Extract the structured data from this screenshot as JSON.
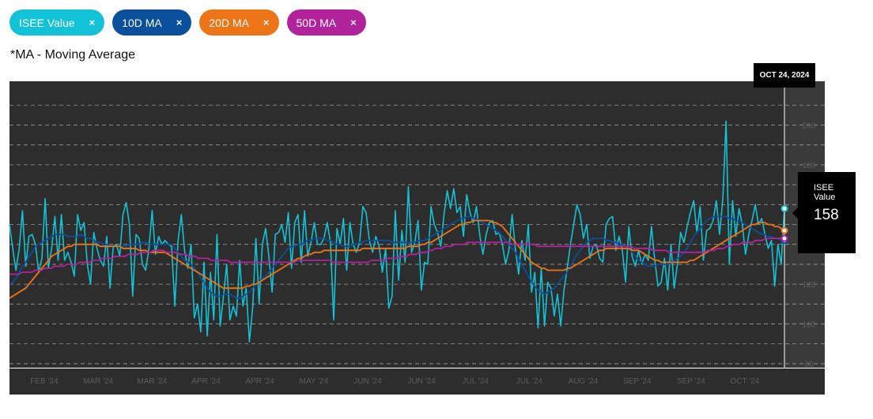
{
  "legend_chips": [
    {
      "label": "ISEE Value",
      "color": "#12c2d6",
      "remove": "×"
    },
    {
      "label": "10D MA",
      "color": "#0a4f9c",
      "remove": "×"
    },
    {
      "label": "20D MA",
      "color": "#ee7418",
      "remove": "×"
    },
    {
      "label": "50D MA",
      "color": "#b2239b",
      "remove": "×"
    }
  ],
  "note": "*MA - Moving Average",
  "tooltip": {
    "date": "OCT 24, 2024",
    "series": "ISEE Value",
    "value": "158"
  },
  "chart_data": {
    "type": "line",
    "x_labels": [
      "FEB '24",
      "MAR '24",
      "MAR '24",
      "APR '24",
      "APR '24",
      "MAY '24",
      "JUN '24",
      "JUN '24",
      "JUL '24",
      "JUL '24",
      "AUG '24",
      "SEP '24",
      "SEP '24",
      "OCT '24"
    ],
    "y_ticks": [
      80,
      100,
      120,
      140,
      160,
      180,
      200
    ],
    "ylim": [
      78,
      222
    ],
    "grid": true,
    "series": [
      {
        "name": "ISEE Value",
        "color": "#12c2d6",
        "values": [
          150,
          138,
          127,
          138,
          157,
          129,
          144,
          145,
          140,
          126,
          133,
          163,
          128,
          138,
          154,
          132,
          155,
          132,
          136,
          131,
          124,
          155,
          147,
          151,
          130,
          120,
          146,
          138,
          132,
          129,
          144,
          118,
          139,
          140,
          134,
          155,
          161,
          150,
          114,
          145,
          143,
          130,
          127,
          138,
          157,
          135,
          144,
          140,
          142,
          140,
          139,
          109,
          142,
          155,
          137,
          128,
          140,
          103,
          110,
          96,
          131,
          94,
          126,
          102,
          145,
          99,
          114,
          130,
          102,
          109,
          104,
          132,
          109,
          118,
          91,
          108,
          143,
          110,
          140,
          148,
          134,
          116,
          145,
          146,
          150,
          141,
          156,
          128,
          151,
          155,
          131,
          157,
          134,
          141,
          151,
          140,
          140,
          143,
          151,
          141,
          102,
          148,
          140,
          153,
          127,
          151,
          140,
          136,
          141,
          159,
          156,
          142,
          136,
          144,
          139,
          126,
          138,
          108,
          114,
          157,
          122,
          147,
          131,
          169,
          136,
          141,
          152,
          117,
          131,
          130,
          159,
          150,
          146,
          139,
          155,
          167,
          158,
          168,
          156,
          159,
          144,
          165,
          156,
          151,
          159,
          145,
          135,
          145,
          151,
          152,
          145,
          146,
          140,
          130,
          137,
          155,
          138,
          125,
          142,
          132,
          150,
          116,
          126,
          98,
          128,
          99,
          121,
          118,
          104,
          115,
          99,
          117,
          128,
          140,
          150,
          160,
          155,
          143,
          150,
          133,
          139,
          140,
          133,
          131,
          150,
          153,
          154,
          137,
          144,
          137,
          121,
          149,
          134,
          129,
          137,
          130,
          135,
          132,
          149,
          132,
          119,
          121,
          133,
          117,
          140,
          118,
          130,
          146,
          141,
          149,
          156,
          162,
          146,
          159,
          132,
          147,
          148,
          152,
          162,
          145,
          163,
          202,
          130,
          162,
          144,
          158,
          150,
          135,
          145,
          152,
          160,
          150,
          153,
          145,
          138,
          142,
          119,
          140,
          130,
          158
        ]
      },
      {
        "name": "10D MA",
        "color": "#0a4f9c",
        "values": [
          120,
          121,
          123,
          126,
          129,
          131,
          134,
          136,
          139,
          140,
          141,
          142,
          143,
          144,
          145,
          145,
          145,
          145,
          144,
          144,
          144,
          144,
          145,
          144,
          143,
          143,
          142,
          141,
          141,
          140,
          140,
          139,
          139,
          139,
          139,
          139,
          139,
          140,
          140,
          140,
          140,
          141,
          141,
          140,
          140,
          140,
          140,
          140,
          140,
          140,
          140,
          138,
          136,
          134,
          132,
          131,
          130,
          128,
          126,
          123,
          121,
          118,
          116,
          115,
          114,
          114,
          115,
          115,
          115,
          114,
          113,
          113,
          114,
          115,
          116,
          118,
          120,
          121,
          123,
          124,
          126,
          128,
          130,
          132,
          134,
          136,
          138,
          139,
          139,
          140,
          140,
          141,
          142,
          142,
          143,
          143,
          143,
          143,
          142,
          142,
          141,
          140,
          140,
          139,
          139,
          139,
          140,
          140,
          141,
          141,
          142,
          142,
          142,
          142,
          142,
          142,
          142,
          142,
          141,
          141,
          141,
          141,
          141,
          141,
          141,
          141,
          142,
          142,
          142,
          143,
          144,
          145,
          146,
          147,
          148,
          149,
          150,
          151,
          152,
          153,
          153,
          154,
          154,
          153,
          153,
          152,
          151,
          150,
          149,
          148,
          147,
          146,
          144,
          142,
          140,
          138,
          136,
          133,
          130,
          127,
          124,
          121,
          119,
          117,
          116,
          115,
          116,
          117,
          118,
          120,
          122,
          124,
          126,
          129,
          132,
          135,
          137,
          139,
          141,
          142,
          143,
          143,
          143,
          143,
          142,
          142,
          141,
          141,
          140,
          140,
          139,
          138,
          136,
          134,
          132,
          131,
          130,
          129,
          129,
          129,
          130,
          130,
          130,
          130,
          131,
          132,
          133,
          134,
          136,
          138,
          141,
          144,
          146,
          148,
          150,
          152,
          153,
          154,
          154,
          154,
          154,
          154,
          153,
          153,
          152,
          152,
          151,
          150,
          149,
          148,
          147,
          146,
          145,
          145,
          144,
          144,
          143,
          143,
          142,
          142
        ]
      },
      {
        "name": "20D MA",
        "color": "#ee7418",
        "values": [
          113,
          114,
          115,
          116,
          117,
          118,
          120,
          122,
          124,
          126,
          128,
          130,
          132,
          134,
          135,
          136,
          137,
          138,
          139,
          139,
          140,
          140,
          140,
          140,
          140,
          140,
          140,
          140,
          139,
          139,
          139,
          139,
          139,
          139,
          139,
          138,
          138,
          138,
          138,
          138,
          137,
          137,
          137,
          136,
          136,
          136,
          136,
          136,
          136,
          135,
          134,
          133,
          132,
          131,
          130,
          129,
          128,
          127,
          126,
          125,
          124,
          123,
          122,
          121,
          120,
          119,
          118,
          118,
          118,
          118,
          118,
          118,
          118,
          119,
          119,
          120,
          120,
          121,
          122,
          123,
          124,
          125,
          126,
          127,
          128,
          129,
          130,
          131,
          132,
          133,
          133,
          134,
          135,
          135,
          136,
          136,
          136,
          137,
          137,
          137,
          137,
          137,
          137,
          137,
          137,
          137,
          137,
          137,
          137,
          138,
          138,
          138,
          138,
          138,
          138,
          138,
          138,
          138,
          138,
          138,
          138,
          138,
          138,
          139,
          139,
          139,
          139,
          140,
          140,
          141,
          141,
          142,
          143,
          144,
          145,
          146,
          147,
          148,
          149,
          150,
          150,
          151,
          151,
          152,
          152,
          152,
          152,
          152,
          152,
          151,
          151,
          150,
          149,
          147,
          145,
          143,
          141,
          139,
          137,
          135,
          133,
          131,
          130,
          129,
          128,
          128,
          127,
          127,
          127,
          127,
          127,
          127,
          128,
          128,
          129,
          130,
          131,
          132,
          133,
          134,
          135,
          136,
          137,
          137,
          138,
          138,
          138,
          138,
          138,
          138,
          138,
          138,
          137,
          137,
          137,
          136,
          135,
          134,
          133,
          132,
          132,
          131,
          131,
          131,
          131,
          131,
          131,
          131,
          131,
          131,
          132,
          132,
          133,
          134,
          135,
          136,
          137,
          138,
          139,
          140,
          141,
          142,
          143,
          144,
          145,
          146,
          147,
          148,
          149,
          150,
          150,
          151,
          151,
          151,
          150,
          150,
          149,
          149,
          148,
          147
        ]
      },
      {
        "name": "50D MA",
        "color": "#b2239b",
        "values": [
          125,
          125,
          125,
          125,
          126,
          126,
          126,
          126,
          127,
          127,
          127,
          128,
          128,
          128,
          129,
          129,
          129,
          129,
          130,
          130,
          130,
          130,
          131,
          131,
          131,
          131,
          132,
          132,
          132,
          133,
          133,
          133,
          133,
          134,
          134,
          134,
          134,
          135,
          135,
          135,
          135,
          136,
          136,
          136,
          136,
          137,
          137,
          137,
          137,
          136,
          136,
          136,
          136,
          135,
          135,
          135,
          134,
          134,
          134,
          133,
          133,
          133,
          133,
          132,
          132,
          132,
          132,
          132,
          132,
          131,
          131,
          131,
          131,
          131,
          131,
          131,
          131,
          131,
          131,
          131,
          131,
          131,
          131,
          131,
          131,
          131,
          131,
          131,
          131,
          131,
          132,
          132,
          132,
          132,
          132,
          132,
          132,
          132,
          132,
          132,
          132,
          131,
          131,
          131,
          131,
          131,
          131,
          131,
          131,
          131,
          131,
          131,
          131,
          132,
          132,
          132,
          132,
          132,
          133,
          133,
          133,
          133,
          134,
          134,
          134,
          135,
          135,
          135,
          136,
          136,
          136,
          137,
          137,
          138,
          138,
          138,
          139,
          139,
          139,
          140,
          140,
          140,
          140,
          141,
          141,
          141,
          141,
          141,
          141,
          141,
          141,
          141,
          141,
          141,
          141,
          141,
          141,
          140,
          140,
          140,
          140,
          140,
          140,
          140,
          140,
          139,
          139,
          139,
          139,
          139,
          139,
          139,
          139,
          139,
          139,
          139,
          139,
          139,
          139,
          139,
          139,
          139,
          139,
          139,
          139,
          139,
          139,
          139,
          139,
          139,
          139,
          139,
          139,
          139,
          139,
          138,
          138,
          138,
          138,
          138,
          138,
          137,
          137,
          137,
          137,
          137,
          136,
          136,
          136,
          136,
          136,
          136,
          136,
          136,
          136,
          136,
          136,
          136,
          137,
          137,
          137,
          138,
          138,
          138,
          139,
          139,
          140,
          140,
          140,
          141,
          141,
          141,
          141,
          142,
          142,
          142,
          143,
          143,
          143,
          143,
          143,
          143,
          143
        ]
      }
    ]
  }
}
